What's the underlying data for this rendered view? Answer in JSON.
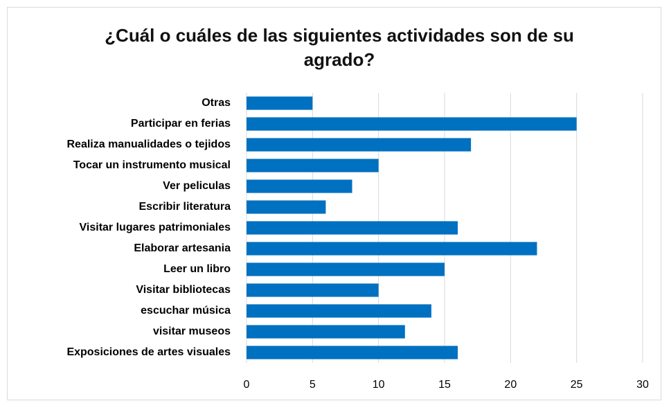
{
  "chart_data": {
    "type": "bar",
    "orientation": "horizontal",
    "title": "¿Cuál o cuáles de las siguientes actividades son de su agrado?",
    "categories": [
      "Otras",
      "Participar en ferias",
      "Realiza manualidades o tejidos",
      "Tocar un instrumento musical",
      "Ver peliculas",
      "Escribir literatura",
      "Visitar lugares patrimoniales",
      "Elaborar artesania",
      "Leer un libro",
      "Visitar bibliotecas",
      "escuchar música",
      "visitar museos",
      "Exposiciones de artes visuales"
    ],
    "values": [
      5,
      25,
      17,
      10,
      8,
      6,
      16,
      22,
      15,
      10,
      14,
      12,
      16
    ],
    "color": "#0070c0",
    "xlim": [
      0,
      30
    ],
    "xticks": [
      0,
      5,
      10,
      15,
      20,
      25,
      30
    ],
    "grid": true
  }
}
